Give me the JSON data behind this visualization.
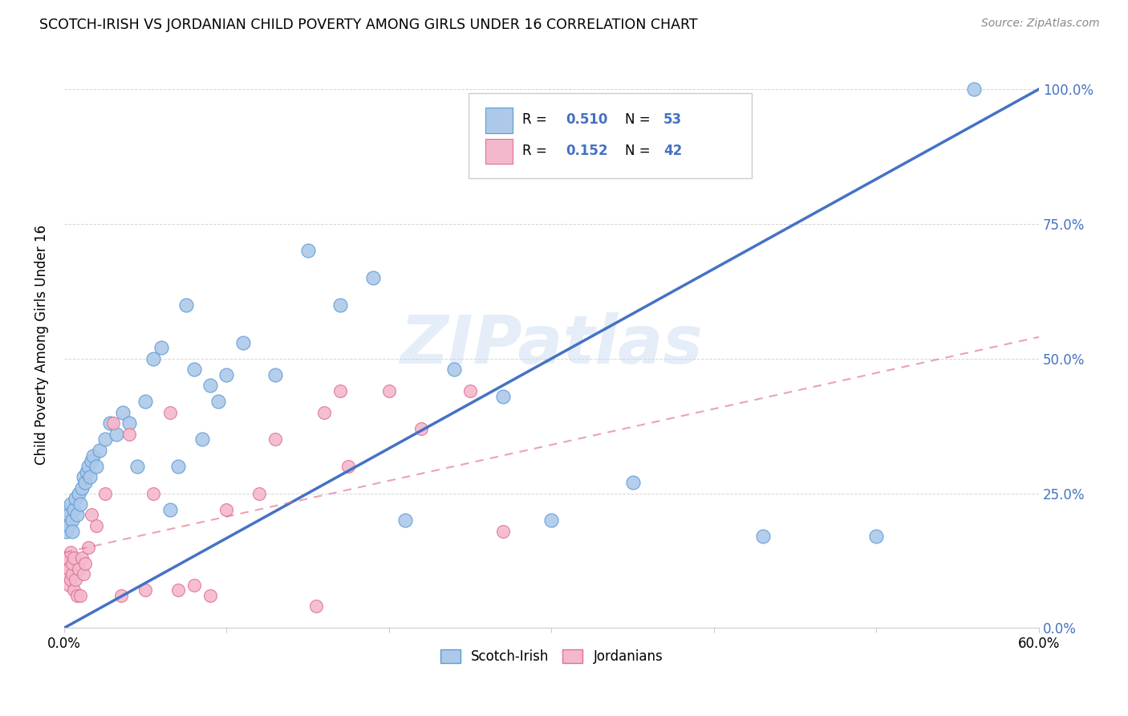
{
  "title": "SCOTCH-IRISH VS JORDANIAN CHILD POVERTY AMONG GIRLS UNDER 16 CORRELATION CHART",
  "source": "Source: ZipAtlas.com",
  "ylabel": "Child Poverty Among Girls Under 16",
  "x_min": 0.0,
  "x_max": 0.6,
  "y_min": 0.0,
  "y_max": 1.05,
  "x_ticks": [
    0.0,
    0.1,
    0.2,
    0.3,
    0.4,
    0.5,
    0.6
  ],
  "x_tick_labels": [
    "0.0%",
    "",
    "",
    "",
    "",
    "",
    "60.0%"
  ],
  "y_ticks": [
    0.0,
    0.25,
    0.5,
    0.75,
    1.0
  ],
  "y_tick_labels_right": [
    "0.0%",
    "25.0%",
    "50.0%",
    "75.0%",
    "100.0%"
  ],
  "scotch_irish_color": "#adc9e9",
  "scotch_irish_edge": "#5b9bd5",
  "jordanian_color": "#f4b8cc",
  "jordanian_edge": "#e07090",
  "scotch_irish_line_color": "#4472c4",
  "jordanian_line_color": "#e07090",
  "watermark": "ZIPatlas",
  "scotch_irish_R": "0.510",
  "scotch_irish_N": "53",
  "jordanian_R": "0.152",
  "jordanian_N": "42",
  "legend_text_color": "#4472c4",
  "scotch_irish_x": [
    0.001,
    0.002,
    0.002,
    0.003,
    0.003,
    0.004,
    0.005,
    0.005,
    0.006,
    0.007,
    0.008,
    0.009,
    0.01,
    0.011,
    0.012,
    0.013,
    0.014,
    0.015,
    0.016,
    0.017,
    0.018,
    0.02,
    0.022,
    0.025,
    0.028,
    0.032,
    0.036,
    0.04,
    0.045,
    0.05,
    0.055,
    0.06,
    0.065,
    0.07,
    0.075,
    0.08,
    0.085,
    0.09,
    0.095,
    0.1,
    0.11,
    0.13,
    0.15,
    0.17,
    0.19,
    0.21,
    0.24,
    0.27,
    0.3,
    0.35,
    0.43,
    0.5,
    0.56
  ],
  "scotch_irish_y": [
    0.18,
    0.2,
    0.22,
    0.19,
    0.21,
    0.23,
    0.2,
    0.18,
    0.22,
    0.24,
    0.21,
    0.25,
    0.23,
    0.26,
    0.28,
    0.27,
    0.29,
    0.3,
    0.28,
    0.31,
    0.32,
    0.3,
    0.33,
    0.35,
    0.38,
    0.36,
    0.4,
    0.38,
    0.3,
    0.42,
    0.5,
    0.52,
    0.22,
    0.3,
    0.6,
    0.48,
    0.35,
    0.45,
    0.42,
    0.47,
    0.53,
    0.47,
    0.7,
    0.6,
    0.65,
    0.2,
    0.48,
    0.43,
    0.2,
    0.27,
    0.17,
    0.17,
    1.0
  ],
  "jordanian_x": [
    0.001,
    0.002,
    0.002,
    0.003,
    0.003,
    0.004,
    0.004,
    0.005,
    0.005,
    0.006,
    0.006,
    0.007,
    0.008,
    0.009,
    0.01,
    0.011,
    0.012,
    0.013,
    0.015,
    0.017,
    0.02,
    0.025,
    0.03,
    0.035,
    0.04,
    0.05,
    0.055,
    0.065,
    0.07,
    0.08,
    0.09,
    0.1,
    0.13,
    0.16,
    0.17,
    0.175,
    0.2,
    0.22,
    0.25,
    0.27,
    0.12,
    0.155
  ],
  "jordanian_y": [
    0.12,
    0.1,
    0.13,
    0.08,
    0.11,
    0.09,
    0.14,
    0.1,
    0.12,
    0.07,
    0.13,
    0.09,
    0.06,
    0.11,
    0.06,
    0.13,
    0.1,
    0.12,
    0.15,
    0.21,
    0.19,
    0.25,
    0.38,
    0.06,
    0.36,
    0.07,
    0.25,
    0.4,
    0.07,
    0.08,
    0.06,
    0.22,
    0.35,
    0.4,
    0.44,
    0.3,
    0.44,
    0.37,
    0.44,
    0.18,
    0.25,
    0.04
  ]
}
